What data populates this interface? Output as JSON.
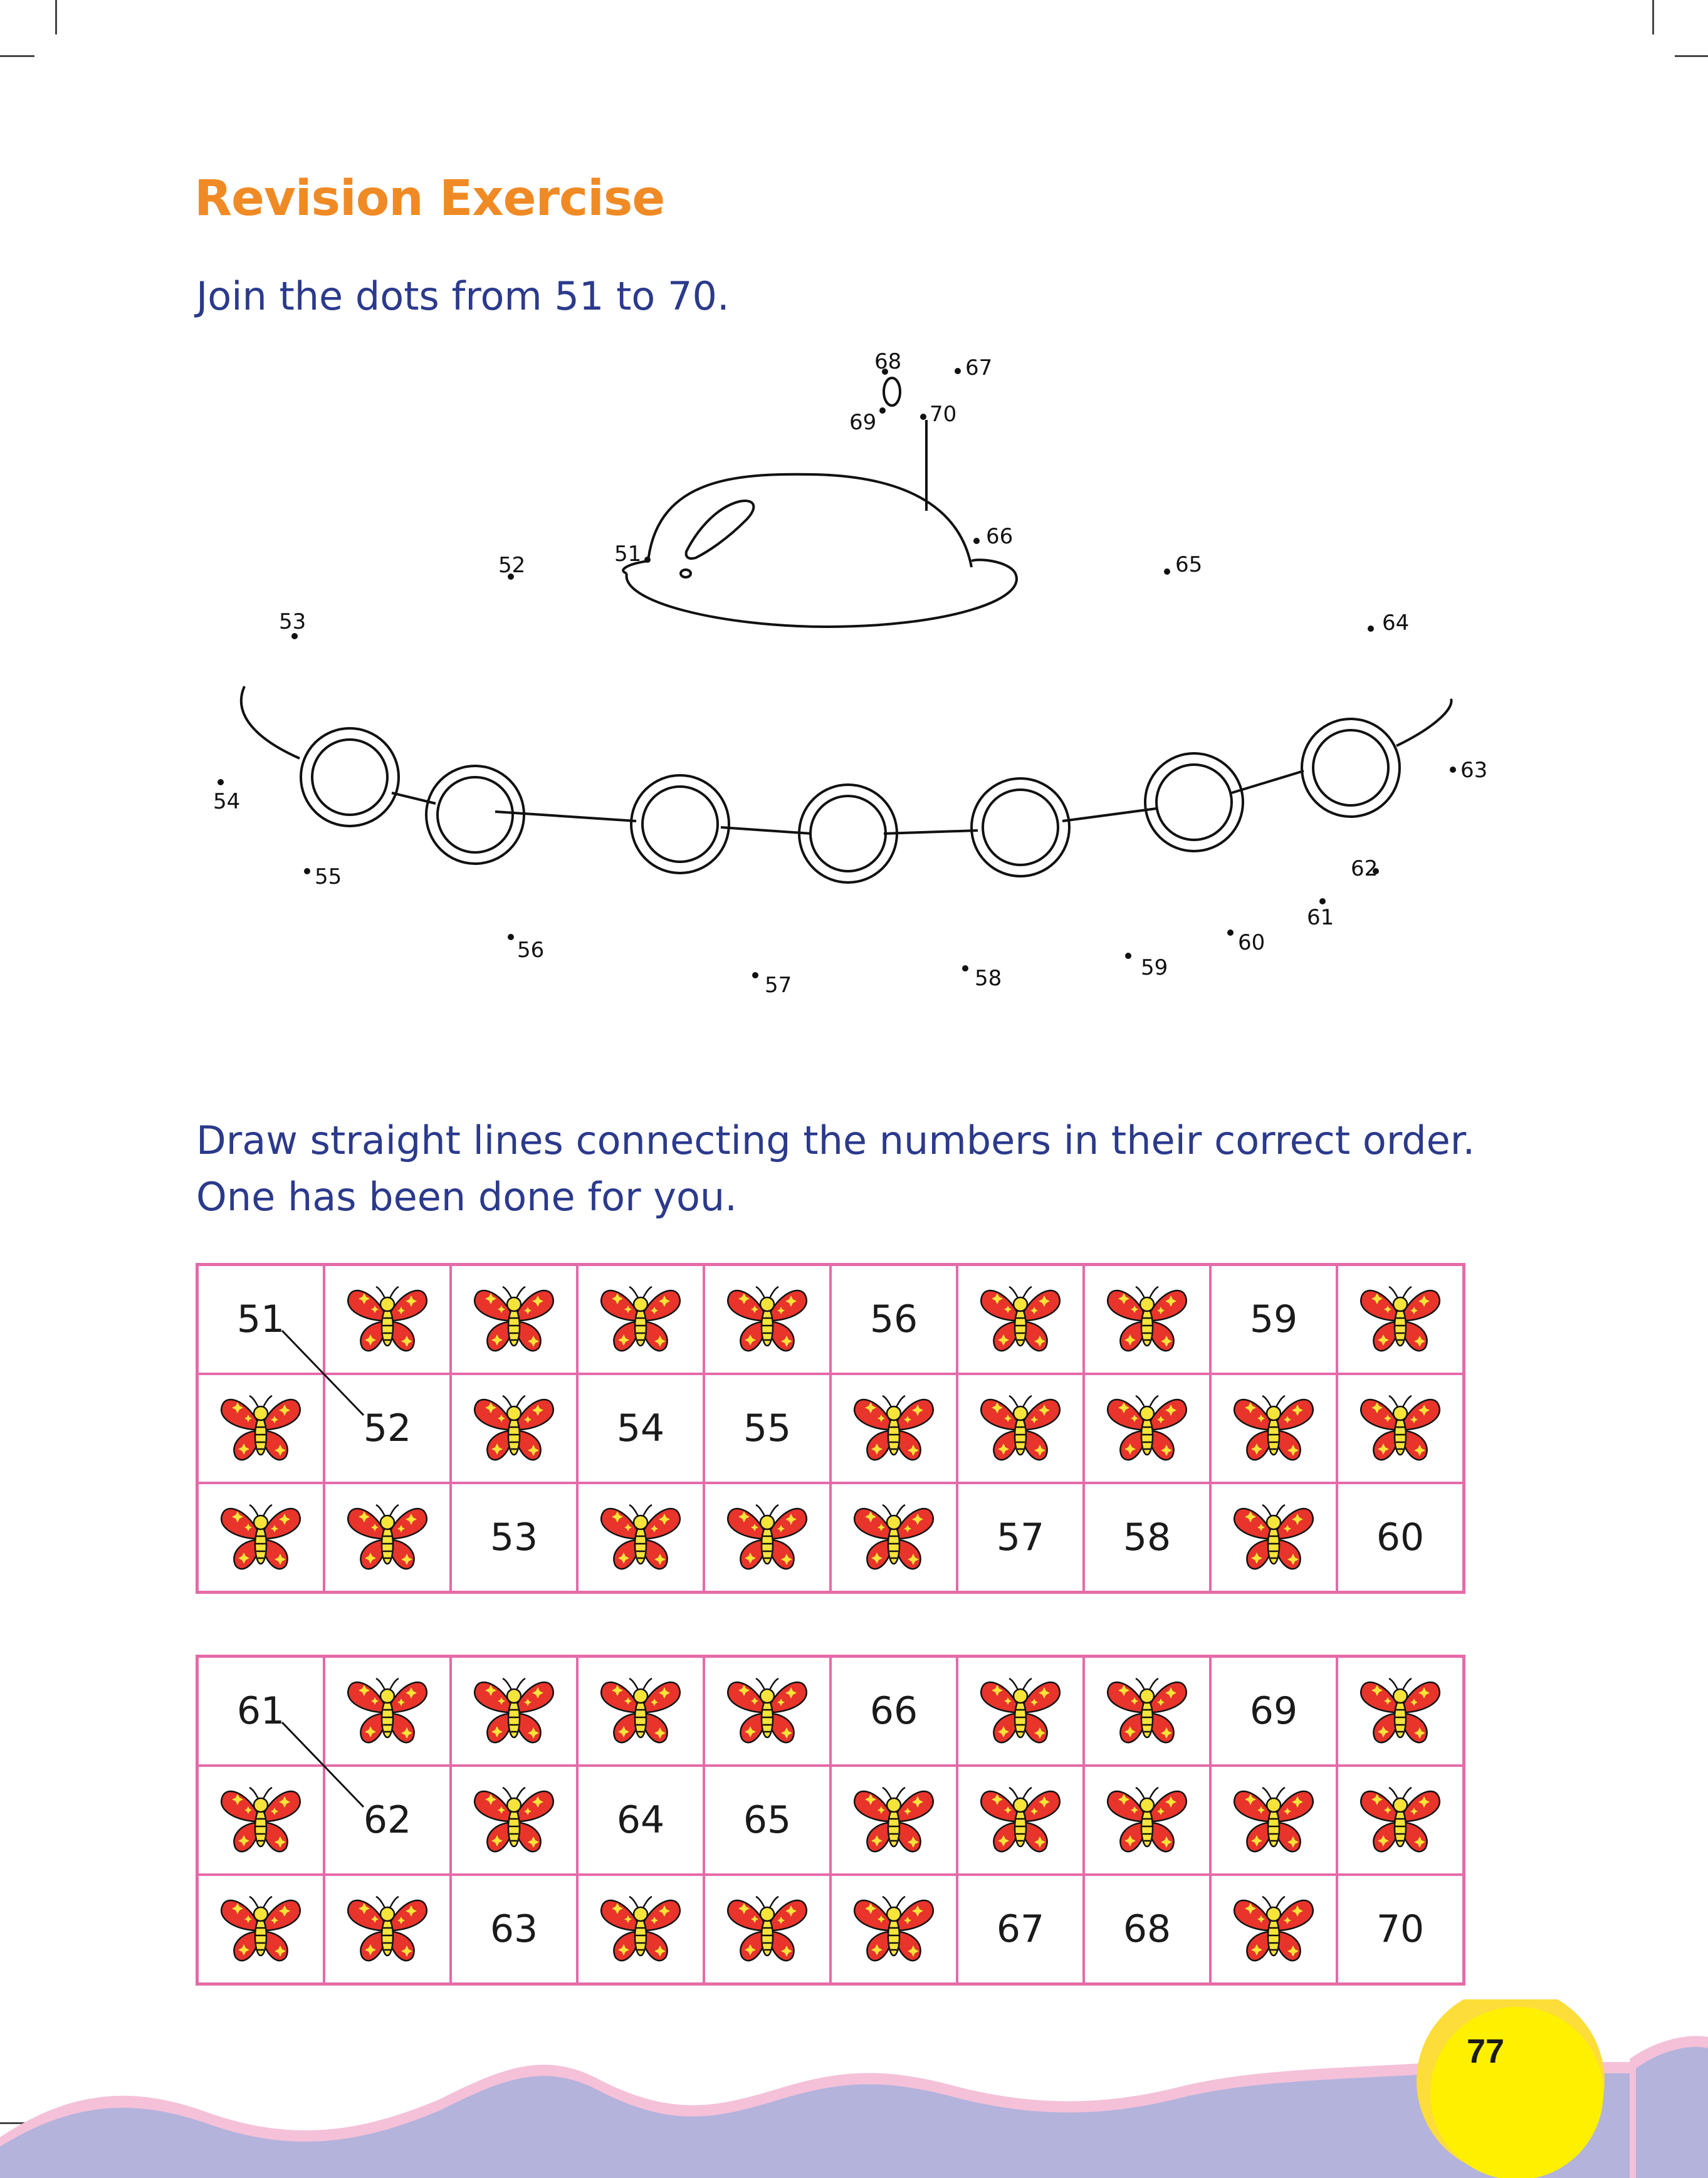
{
  "title": "Revision Exercise",
  "instruction1": "Join the dots from 51 to 70.",
  "instruction2_line1": "Draw straight lines connecting the numbers in their correct order.",
  "instruction2_line2": "One has been done for you.",
  "dots": [
    "51",
    "52",
    "53",
    "54",
    "55",
    "56",
    "57",
    "58",
    "59",
    "60",
    "61",
    "62",
    "63",
    "64",
    "65",
    "66",
    "67",
    "68",
    "69",
    "70"
  ],
  "table1": [
    [
      "51",
      "",
      "",
      "",
      "",
      "56",
      "",
      "",
      "59",
      ""
    ],
    [
      "",
      "52",
      "",
      "54",
      "55",
      "",
      "",
      "",
      "",
      ""
    ],
    [
      "",
      "",
      "53",
      "",
      "",
      "",
      "57",
      "58",
      "",
      "60"
    ]
  ],
  "table2": [
    [
      "61",
      "",
      "",
      "",
      "",
      "66",
      "",
      "",
      "69",
      ""
    ],
    [
      "",
      "62",
      "",
      "64",
      "65",
      "",
      "",
      "",
      "",
      ""
    ],
    [
      "",
      "",
      "63",
      "",
      "",
      "",
      "67",
      "68",
      "",
      "70"
    ]
  ],
  "cell_icon": "butterfly-icon",
  "colors": {
    "title": "#f08a25",
    "instruction": "#2b3a8c",
    "grid_border": "#e56aa8",
    "butterfly": "#e8342b",
    "wave": "#b3b3dc",
    "wave_edge": "#f4c1d9",
    "page_circle": "#fff000"
  },
  "page_number": "77"
}
